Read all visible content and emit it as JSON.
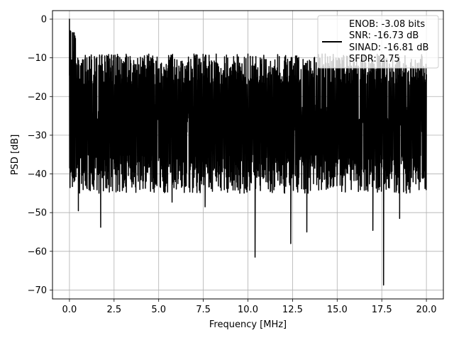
{
  "chart_data": {
    "type": "line",
    "title": "",
    "xlabel": "Frequency [MHz]",
    "ylabel": "PSD [dB]",
    "xlim": [
      -0.95,
      20.95
    ],
    "ylim": [
      -72.3,
      2.2
    ],
    "x_ticks": [
      0.0,
      2.5,
      5.0,
      7.5,
      10.0,
      12.5,
      15.0,
      17.5,
      20.0
    ],
    "x_tick_labels": [
      "0.0",
      "2.5",
      "5.0",
      "7.5",
      "10.0",
      "12.5",
      "15.0",
      "17.5",
      "20.0"
    ],
    "y_ticks": [
      0,
      -10,
      -20,
      -30,
      -40,
      -50,
      -60,
      -70
    ],
    "y_tick_labels": [
      "0",
      "−10",
      "−20",
      "−30",
      "−40",
      "−50",
      "−60",
      "−70"
    ],
    "grid": true,
    "legend_position": "top-right",
    "legend": [
      "ENOB: -3.08 bits",
      "SNR: -16.73 dB",
      "SINAD: -16.81 dB",
      "SFDR: 2.75"
    ],
    "series": [
      {
        "color": "#000000",
        "x_range": [
          0.0,
          20.0
        ],
        "noise_band_upper_db": [
          -17,
          -9
        ],
        "noise_band_lower_db": [
          -45,
          -35
        ],
        "notable_points": [
          {
            "x": 0.0,
            "y": 0.0
          },
          {
            "x": 0.04,
            "y": -18.5
          },
          {
            "x": 0.2,
            "y": -3.5
          },
          {
            "x": 0.5,
            "y": -49.5
          },
          {
            "x": 1.75,
            "y": -53.8
          },
          {
            "x": 5.75,
            "y": -47.3
          },
          {
            "x": 7.6,
            "y": -48.5
          },
          {
            "x": 10.0,
            "y": -9.0
          },
          {
            "x": 10.4,
            "y": -61.5
          },
          {
            "x": 12.4,
            "y": -58.0
          },
          {
            "x": 13.3,
            "y": -55.0
          },
          {
            "x": 17.0,
            "y": -54.6
          },
          {
            "x": 17.6,
            "y": -68.7
          },
          {
            "x": 18.5,
            "y": -51.5
          }
        ]
      }
    ]
  }
}
